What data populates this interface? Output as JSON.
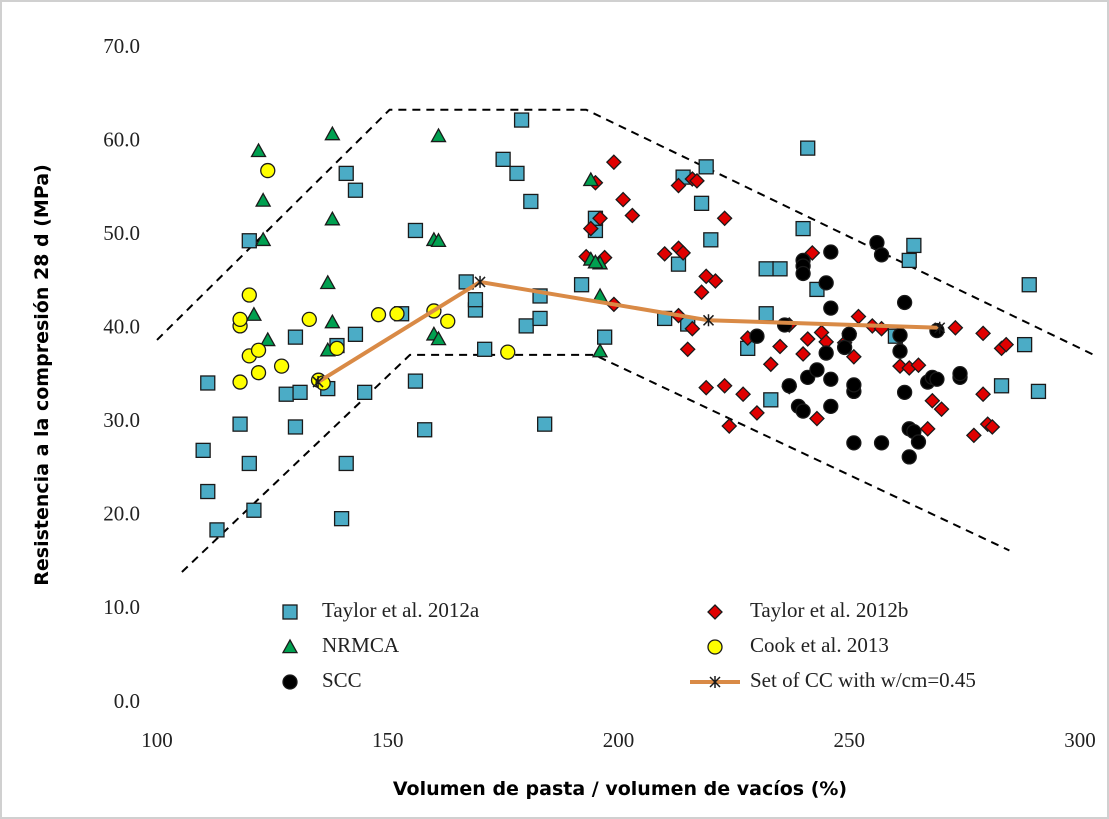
{
  "chart_data": {
    "type": "scatter",
    "x_label": "Volumen de pasta / volumen de vacíos (%)",
    "y_label": "Resistencia a la compresión 28 d (MPa)",
    "xlim": [
      100,
      300
    ],
    "xticks": [
      100,
      150,
      200,
      250,
      300
    ],
    "ylim": [
      0,
      70
    ],
    "yticks": [
      {
        "value": 0,
        "label": "0.0"
      },
      {
        "value": 10,
        "label": "10.0"
      },
      {
        "value": 20,
        "label": "20.0"
      },
      {
        "value": 30,
        "label": "30.0"
      },
      {
        "value": 40,
        "label": "40.0"
      },
      {
        "value": 50,
        "label": "50.0"
      },
      {
        "value": 60,
        "label": "60.0"
      },
      {
        "value": 70,
        "label": "70.0"
      }
    ],
    "dashed_lines": [
      {
        "x": [
          100,
          150.4,
          193,
          303
        ],
        "values": [
          38.8,
          63.4,
          63.4,
          37.2
        ]
      },
      {
        "x": [
          105.4,
          154.8,
          194.8,
          284.7
        ],
        "values": [
          14.0,
          37.2,
          37.2,
          16.3
        ]
      }
    ],
    "series": [
      {
        "name": "Taylor et al. 2012a",
        "marker": "square",
        "color": "#4bacc6",
        "x": [
          110,
          111,
          111,
          113,
          118,
          120,
          120,
          121,
          128,
          130,
          130,
          131,
          137,
          139,
          140,
          141,
          141,
          143,
          143,
          145,
          153,
          156,
          156,
          158,
          167,
          169,
          169,
          171,
          175,
          178,
          179,
          180,
          181,
          183,
          183,
          184,
          192,
          195,
          195,
          197,
          210,
          213,
          214,
          215,
          218,
          219,
          220,
          228,
          232,
          232,
          233,
          235,
          240,
          241,
          243,
          260,
          263,
          264,
          283,
          288,
          289,
          291
        ],
        "values": [
          27.0,
          34.2,
          22.6,
          18.5,
          29.8,
          25.6,
          49.4,
          20.6,
          33.0,
          29.5,
          39.1,
          33.2,
          33.6,
          38.2,
          19.7,
          25.6,
          56.6,
          39.4,
          54.8,
          33.2,
          41.6,
          50.5,
          34.4,
          29.2,
          45.0,
          42.0,
          43.1,
          37.8,
          58.1,
          56.6,
          62.3,
          40.3,
          53.6,
          41.1,
          43.5,
          29.8,
          44.7,
          50.5,
          51.8,
          39.1,
          41.1,
          46.9,
          56.2,
          40.5,
          53.4,
          57.3,
          49.5,
          37.9,
          46.4,
          41.6,
          32.4,
          46.4,
          50.7,
          59.3,
          44.2,
          39.2,
          47.3,
          48.9,
          33.9,
          38.3,
          44.7,
          33.3
        ]
      },
      {
        "name": "Taylor et al. 2012b",
        "marker": "diamond",
        "color": "#e00000",
        "x": [
          193,
          194,
          195,
          196,
          197,
          199,
          199,
          201,
          203,
          210,
          213,
          213,
          213,
          214,
          215,
          216,
          216,
          217,
          218,
          219,
          219,
          221,
          223,
          223,
          224,
          227,
          228,
          230,
          233,
          235,
          237,
          237,
          240,
          241,
          242,
          243,
          244,
          245,
          249,
          250,
          251,
          252,
          255,
          257,
          261,
          263,
          265,
          267,
          268,
          270,
          273,
          277,
          279,
          279,
          280,
          281,
          283,
          284
        ],
        "values": [
          47.7,
          50.7,
          55.6,
          51.8,
          47.6,
          42.6,
          57.8,
          53.8,
          52.1,
          48.0,
          41.4,
          55.3,
          48.6,
          48.1,
          37.8,
          40.0,
          56.0,
          55.8,
          43.9,
          45.6,
          33.7,
          45.1,
          51.8,
          33.9,
          29.6,
          33.0,
          39.0,
          31.0,
          36.2,
          38.1,
          33.8,
          40.4,
          37.3,
          38.9,
          48.1,
          30.4,
          39.6,
          38.6,
          38.5,
          39.5,
          37.0,
          41.3,
          40.3,
          40.0,
          36.0,
          35.8,
          36.1,
          29.3,
          32.3,
          31.4,
          40.1,
          28.6,
          33.0,
          39.5,
          29.8,
          29.5,
          37.9,
          38.3
        ]
      },
      {
        "name": "NRMCA",
        "marker": "triangle",
        "color": "#00a050",
        "x": [
          121,
          122,
          123,
          123,
          124,
          137,
          137,
          138,
          138,
          138,
          160,
          160,
          161,
          161,
          161,
          194,
          194,
          196,
          196,
          196,
          195
        ],
        "values": [
          41.5,
          59.0,
          53.7,
          49.5,
          38.8,
          37.7,
          44.9,
          51.7,
          60.8,
          40.7,
          39.4,
          49.5,
          60.6,
          38.9,
          49.4,
          47.4,
          55.9,
          47.0,
          43.5,
          37.6,
          47.1
        ]
      },
      {
        "name": "Cook et al. 2013",
        "marker": "circle",
        "color": "#ffff00",
        "x": [
          118,
          118,
          118,
          120,
          120,
          122,
          122,
          124,
          127,
          133,
          135,
          136,
          139,
          148,
          152,
          160,
          163,
          176
        ],
        "values": [
          40.3,
          41.0,
          34.3,
          37.1,
          43.6,
          37.7,
          35.3,
          56.9,
          36.0,
          41.0,
          34.5,
          34.2,
          37.9,
          41.5,
          41.6,
          41.9,
          40.8,
          37.5
        ]
      },
      {
        "name": "SCC",
        "marker": "circle",
        "color": "#000000",
        "x": [
          230,
          236,
          237,
          239,
          240,
          240,
          240,
          240,
          241,
          243,
          245,
          245,
          246,
          246,
          246,
          246,
          249,
          251,
          251,
          251,
          256,
          257,
          257,
          261,
          261,
          262,
          262,
          263,
          263,
          264,
          265,
          267,
          268,
          269,
          269,
          274,
          274,
          250
        ],
        "values": [
          39.2,
          40.4,
          33.9,
          31.7,
          31.2,
          47.3,
          46.7,
          45.9,
          34.8,
          35.6,
          44.9,
          37.4,
          31.7,
          34.6,
          48.2,
          42.2,
          38.0,
          33.3,
          34.0,
          27.8,
          49.2,
          47.9,
          27.8,
          37.6,
          39.3,
          33.2,
          42.8,
          29.3,
          26.3,
          29.0,
          27.9,
          34.3,
          34.8,
          34.6,
          39.8,
          34.8,
          35.2,
          39.4
        ]
      },
      {
        "name": "Set of CC with w/cm=0.45",
        "marker": "line-x",
        "color": "#d98a46",
        "x": [
          134.9,
          170,
          219.5,
          269.6
        ],
        "values": [
          34.3,
          45.0,
          40.9,
          40.1
        ]
      }
    ]
  }
}
